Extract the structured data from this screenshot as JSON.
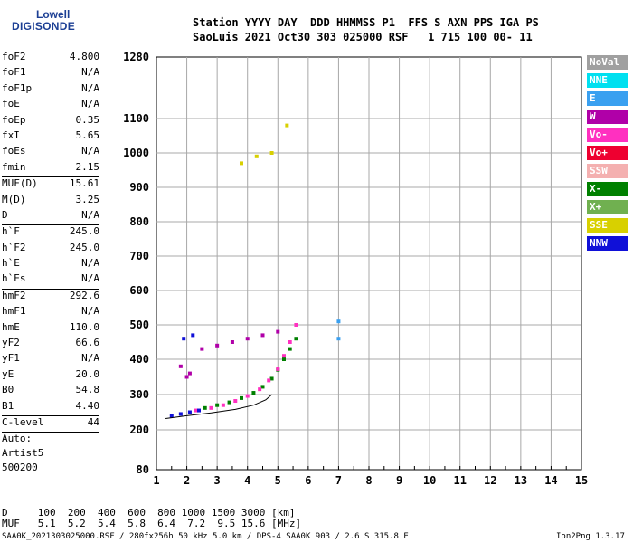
{
  "logo": {
    "line1": "Lowell",
    "line2": "DIGISONDE"
  },
  "header": {
    "line1": "Station YYYY DAY  DDD HHMMSS P1  FFS S AXN PPS IGA PS",
    "line2": "SaoLuis 2021 Oct30 303 025000 RSF   1 715 100 00- 11"
  },
  "params": [
    {
      "name": "foF2",
      "value": "4.800"
    },
    {
      "name": "foF1",
      "value": "N/A"
    },
    {
      "name": "foF1p",
      "value": "N/A"
    },
    {
      "name": "foE",
      "value": "N/A"
    },
    {
      "name": "foEp",
      "value": "0.35"
    },
    {
      "name": "fxI",
      "value": "5.65"
    },
    {
      "name": "foEs",
      "value": "N/A"
    },
    {
      "name": "fmin",
      "value": "2.15"
    },
    {
      "sep": true
    },
    {
      "name": "MUF(D)",
      "value": "15.61"
    },
    {
      "name": "M(D)",
      "value": "3.25"
    },
    {
      "name": "D",
      "value": "N/A"
    },
    {
      "sep": true
    },
    {
      "name": "h`F",
      "value": "245.0"
    },
    {
      "name": "h`F2",
      "value": "245.0"
    },
    {
      "name": "h`E",
      "value": "N/A"
    },
    {
      "name": "h`Es",
      "value": "N/A"
    },
    {
      "sep": true
    },
    {
      "name": "hmF2",
      "value": "292.6"
    },
    {
      "name": "hmF1",
      "value": "N/A"
    },
    {
      "name": "hmE",
      "value": "110.0"
    },
    {
      "name": "yF2",
      "value": "66.6"
    },
    {
      "name": "yF1",
      "value": "N/A"
    },
    {
      "name": "yE",
      "value": "20.0"
    },
    {
      "name": "B0",
      "value": "54.8"
    },
    {
      "name": "B1",
      "value": "4.40"
    },
    {
      "sep": true
    },
    {
      "name": "C-level",
      "value": "44"
    },
    {
      "sep": true
    }
  ],
  "auto": [
    "Auto:",
    "Artist5",
    "500200"
  ],
  "legend": [
    {
      "label": "NoVal",
      "color": "#a0a0a0"
    },
    {
      "label": "NNE",
      "color": "#00e0f0"
    },
    {
      "label": "E",
      "color": "#3aa0f0"
    },
    {
      "label": "W",
      "color": "#b000a8"
    },
    {
      "label": "Vo-",
      "color": "#ff30c0"
    },
    {
      "label": "Vo+",
      "color": "#ee0030"
    },
    {
      "label": "SSW",
      "color": "#f4b0b0"
    },
    {
      "label": "X-",
      "color": "#008000"
    },
    {
      "label": "X+",
      "color": "#70b050"
    },
    {
      "label": "SSE",
      "color": "#d8d000"
    },
    {
      "label": "NNW",
      "color": "#1010d8"
    }
  ],
  "footer": {
    "line1": "D     100  200  400  600  800 1000 1500 3000 [km]",
    "line2": "MUF   5.1  5.2  5.4  5.8  6.4  7.2  9.5 15.6 [MHz]",
    "line3": "SAA0K_2021303025000.RSF / 280fx256h 50 kHz 5.0 km / DPS-4 SAA0K 903 / 2.6 S 315.8 E",
    "version": "Ion2Png 1.3.17"
  },
  "chart_data": {
    "type": "scatter",
    "title": "",
    "xlabel": "",
    "ylabel": "",
    "xlim": [
      1,
      15
    ],
    "ylim": [
      80,
      1280
    ],
    "x_ticks": [
      1,
      2,
      3,
      4,
      5,
      6,
      7,
      8,
      9,
      10,
      11,
      12,
      13,
      14,
      15
    ],
    "y_ticks": [
      80,
      200,
      300,
      400,
      500,
      600,
      700,
      800,
      900,
      1000,
      1100,
      1280
    ],
    "y_scale": "ionogram (non-uniform virtual height)",
    "grid": true,
    "legend_position": "right",
    "series": [
      {
        "name": "X-",
        "points": [
          [
            2.6,
            262
          ],
          [
            3.0,
            270
          ],
          [
            3.4,
            278
          ],
          [
            3.8,
            290
          ],
          [
            4.2,
            305
          ],
          [
            4.5,
            322
          ],
          [
            4.8,
            345
          ],
          [
            5.0,
            370
          ],
          [
            5.2,
            400
          ],
          [
            5.4,
            430
          ],
          [
            5.6,
            460
          ]
        ]
      },
      {
        "name": "Vo-",
        "points": [
          [
            2.3,
            255
          ],
          [
            2.8,
            262
          ],
          [
            3.2,
            270
          ],
          [
            3.6,
            282
          ],
          [
            4.0,
            296
          ],
          [
            4.4,
            315
          ],
          [
            4.7,
            340
          ],
          [
            5.0,
            372
          ],
          [
            5.2,
            410
          ],
          [
            5.4,
            450
          ],
          [
            5.6,
            500
          ]
        ]
      },
      {
        "name": "W",
        "points": [
          [
            2.0,
            350
          ],
          [
            2.5,
            430
          ],
          [
            3.0,
            440
          ],
          [
            3.5,
            450
          ],
          [
            4.0,
            460
          ],
          [
            4.5,
            470
          ],
          [
            5.0,
            480
          ],
          [
            1.8,
            380
          ],
          [
            2.1,
            360
          ]
        ]
      },
      {
        "name": "NNW",
        "points": [
          [
            1.5,
            240
          ],
          [
            1.8,
            245
          ],
          [
            2.1,
            250
          ],
          [
            2.4,
            255
          ],
          [
            1.9,
            460
          ],
          [
            2.2,
            470
          ]
        ]
      },
      {
        "name": "E",
        "points": [
          [
            7.0,
            510
          ],
          [
            7.0,
            460
          ]
        ]
      },
      {
        "name": "SSE",
        "points": [
          [
            3.8,
            970
          ],
          [
            4.3,
            990
          ],
          [
            4.8,
            1000
          ],
          [
            5.3,
            1080
          ]
        ]
      }
    ],
    "model_profile": {
      "name": "fitted trace",
      "points": [
        [
          1.3,
          232
        ],
        [
          2.0,
          240
        ],
        [
          2.8,
          248
        ],
        [
          3.6,
          258
        ],
        [
          4.2,
          270
        ],
        [
          4.6,
          285
        ],
        [
          4.8,
          300
        ]
      ]
    }
  }
}
